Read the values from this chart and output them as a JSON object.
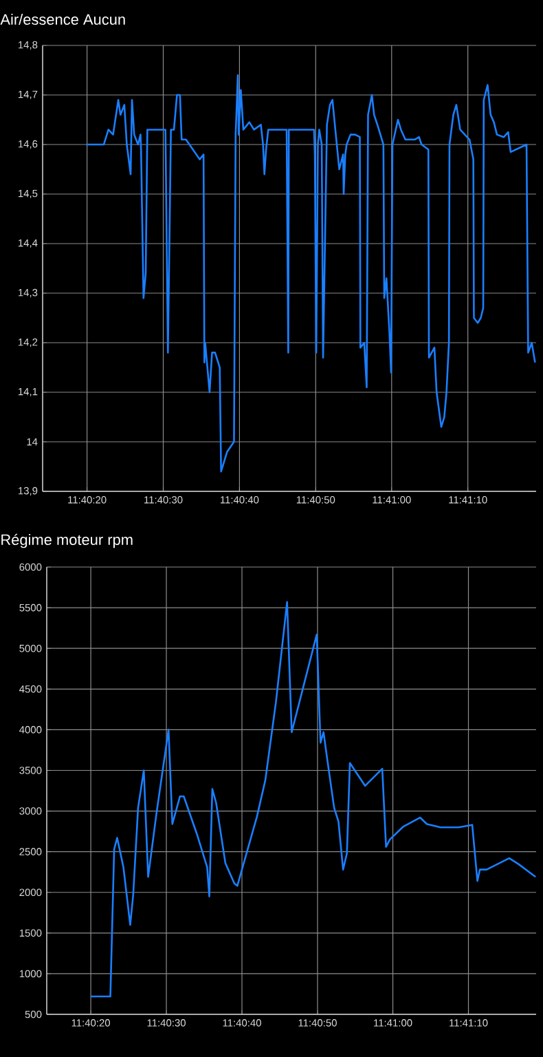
{
  "chart_data": [
    {
      "type": "line",
      "title": "Air/essence  Aucun",
      "color": "#1a7fff",
      "grid": true,
      "xlim": [
        11.6706,
        11.6886
      ],
      "ylim": [
        13.9,
        14.8
      ],
      "xticks": [
        {
          "value": 11.67222,
          "label": "11:40:20"
        },
        {
          "value": 11.675,
          "label": "11:40:30"
        },
        {
          "value": 11.67778,
          "label": "11:40:40"
        },
        {
          "value": 11.68056,
          "label": "11:40:50"
        },
        {
          "value": 11.68333,
          "label": "11:41:00"
        },
        {
          "value": 11.68611,
          "label": "11:41:10"
        }
      ],
      "yticks": [
        {
          "value": 13.9,
          "label": "13,9"
        },
        14,
        {
          "value": 14.1,
          "label": "14,1"
        },
        {
          "value": 14.2,
          "label": "14,2"
        },
        {
          "value": 14.3,
          "label": "14,3"
        },
        {
          "value": 14.4,
          "label": "14,4"
        },
        {
          "value": 14.5,
          "label": "14,5"
        },
        {
          "value": 14.6,
          "label": "14,6"
        },
        {
          "value": 14.7,
          "label": "14,7"
        },
        {
          "value": 14.8,
          "label": "14,8"
        }
      ],
      "x": [
        11.67219,
        11.67283,
        11.673,
        11.67317,
        11.67336,
        11.67344,
        11.67358,
        11.67367,
        11.67381,
        11.67386,
        11.67394,
        11.67408,
        11.67417,
        11.67419,
        11.67428,
        11.67436,
        11.67442,
        11.67508,
        11.67517,
        11.67528,
        11.67539,
        11.6755,
        11.67561,
        11.67567,
        11.67583,
        11.67608,
        11.67633,
        11.67647,
        11.6765,
        11.67653,
        11.67669,
        11.67678,
        11.67689,
        11.67706,
        11.67711,
        11.67733,
        11.67758,
        11.67764,
        11.67772,
        11.67775,
        11.67783,
        11.67792,
        11.67814,
        11.67831,
        11.67856,
        11.67864,
        11.67869,
        11.67875,
        11.67883,
        11.6795,
        11.67956,
        11.67958,
        11.6805,
        11.68053,
        11.68058,
        11.68064,
        11.68069,
        11.68078,
        11.68083,
        11.68097,
        11.68108,
        11.68117,
        11.68133,
        11.68142,
        11.68156,
        11.68158,
        11.68164,
        11.68169,
        11.68183,
        11.682,
        11.68217,
        11.68219,
        11.68233,
        11.68242,
        11.68247,
        11.68261,
        11.68269,
        11.68281,
        11.68292,
        11.68303,
        11.68306,
        11.68314,
        11.68325,
        11.68331,
        11.68336,
        11.68356,
        11.68367,
        11.68383,
        11.68417,
        11.68433,
        11.68442,
        11.68467,
        11.68469,
        11.68489,
        11.68497,
        11.68514,
        11.68525,
        11.68533,
        11.68542,
        11.68544,
        11.68558,
        11.68569,
        11.68583,
        11.68617,
        11.68631,
        11.68633,
        11.68647,
        11.68658,
        11.68667,
        11.68669,
        11.68683,
        11.68694,
        11.68706,
        11.68717,
        11.68742,
        11.68758,
        11.68767,
        11.68825,
        11.68831,
        11.68844,
        11.68856
      ],
      "values": [
        14.6,
        14.6,
        14.63,
        14.62,
        14.69,
        14.66,
        14.68,
        14.6,
        14.54,
        14.69,
        14.62,
        14.6,
        14.62,
        14.59,
        14.29,
        14.34,
        14.63,
        14.63,
        14.18,
        14.63,
        14.63,
        14.7,
        14.7,
        14.61,
        14.61,
        14.59,
        14.57,
        14.58,
        14.16,
        14.2,
        14.1,
        14.18,
        14.18,
        14.15,
        13.94,
        13.98,
        14.0,
        14.62,
        14.74,
        14.62,
        14.71,
        14.63,
        14.645,
        14.63,
        14.64,
        14.6,
        14.54,
        14.59,
        14.63,
        14.63,
        14.18,
        14.63,
        14.63,
        14.58,
        14.18,
        14.6,
        14.63,
        14.6,
        14.17,
        14.64,
        14.68,
        14.69,
        14.6,
        14.55,
        14.58,
        14.5,
        14.58,
        14.6,
        14.62,
        14.62,
        14.615,
        14.19,
        14.2,
        14.11,
        14.66,
        14.7,
        14.66,
        14.64,
        14.62,
        14.6,
        14.29,
        14.33,
        14.22,
        14.14,
        14.6,
        14.65,
        14.63,
        14.61,
        14.61,
        14.615,
        14.6,
        14.59,
        14.17,
        14.19,
        14.1,
        14.03,
        14.05,
        14.1,
        14.2,
        14.6,
        14.66,
        14.68,
        14.63,
        14.61,
        14.57,
        14.25,
        14.24,
        14.25,
        14.27,
        14.69,
        14.72,
        14.66,
        14.645,
        14.62,
        14.615,
        14.625,
        14.585,
        14.6,
        14.18,
        14.2,
        14.16
      ]
    },
    {
      "type": "line",
      "title": "Régime moteur  rpm",
      "color": "#1a7fff",
      "grid": true,
      "xlim": [
        11.6706,
        11.6886
      ],
      "ylim": [
        500,
        6000
      ],
      "xticks": [
        {
          "value": 11.67222,
          "label": "11:40:20"
        },
        {
          "value": 11.675,
          "label": "11:40:30"
        },
        {
          "value": 11.67778,
          "label": "11:40:40"
        },
        {
          "value": 11.68056,
          "label": "11:40:50"
        },
        {
          "value": 11.68333,
          "label": "11:41:00"
        },
        {
          "value": 11.68611,
          "label": "11:41:10"
        }
      ],
      "yticks": [
        500,
        1000,
        1500,
        2000,
        2500,
        3000,
        3500,
        4000,
        4500,
        5000,
        5500,
        6000
      ],
      "x": [
        11.67222,
        11.67294,
        11.67308,
        11.67319,
        11.67342,
        11.67367,
        11.67378,
        11.67396,
        11.67417,
        11.67433,
        11.67464,
        11.67508,
        11.67522,
        11.6755,
        11.67564,
        11.67614,
        11.6765,
        11.67658,
        11.67669,
        11.67683,
        11.67717,
        11.6775,
        11.67761,
        11.67833,
        11.67864,
        11.67903,
        11.67944,
        11.67961,
        11.68053,
        11.68067,
        11.68078,
        11.68092,
        11.68117,
        11.68133,
        11.6815,
        11.68164,
        11.68175,
        11.68231,
        11.68294,
        11.68308,
        11.68322,
        11.68372,
        11.68433,
        11.68458,
        11.68508,
        11.68575,
        11.68625,
        11.68644,
        11.68653,
        11.68678,
        11.68761,
        11.68794,
        11.68858
      ],
      "values": [
        720,
        720,
        2530,
        2670,
        2310,
        1600,
        1970,
        3040,
        3500,
        2190,
        2980,
        4000,
        2840,
        3180,
        3180,
        2700,
        2310,
        1950,
        3270,
        3100,
        2360,
        2110,
        2080,
        2930,
        3380,
        4340,
        5570,
        3970,
        5170,
        3840,
        3970,
        3630,
        3040,
        2870,
        2280,
        2480,
        3590,
        3310,
        3520,
        2560,
        2650,
        2810,
        2920,
        2840,
        2800,
        2800,
        2830,
        2140,
        2280,
        2280,
        2420,
        2350,
        2190
      ]
    }
  ]
}
